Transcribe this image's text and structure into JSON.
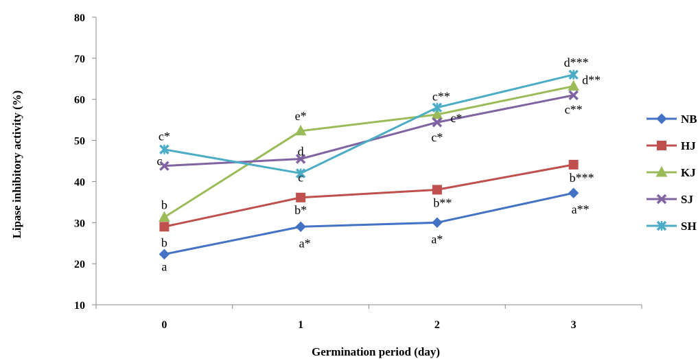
{
  "chart_data": {
    "type": "line",
    "title": "",
    "xlabel": "Germination period (day)",
    "ylabel": "Lipase inhibitory activity (%)",
    "categories": [
      "0",
      "1",
      "2",
      "3"
    ],
    "ylim": [
      10,
      80
    ],
    "yticks": [
      "10",
      "20",
      "30",
      "40",
      "50",
      "60",
      "70",
      "80"
    ],
    "grid": false,
    "legend_position": "right",
    "series": [
      {
        "name": "NB",
        "color": "#4472C4",
        "marker": "diamond",
        "values": [
          22.3,
          29.0,
          30.0,
          37.2
        ],
        "labels": [
          "a",
          "a*",
          "a*",
          "a**"
        ]
      },
      {
        "name": "HJ",
        "color": "#C0504D",
        "marker": "square",
        "values": [
          29.0,
          36.1,
          38.0,
          44.1
        ],
        "labels": [
          "b",
          "b*",
          "b**",
          "b***"
        ]
      },
      {
        "name": "KJ",
        "color": "#9BBB59",
        "marker": "triangle",
        "values": [
          31.3,
          52.3,
          56.3,
          63.2
        ],
        "labels": [
          "b",
          "e*",
          "c*",
          "d**"
        ]
      },
      {
        "name": "SJ",
        "color": "#8064A2",
        "marker": "x",
        "values": [
          43.8,
          45.5,
          54.4,
          61.0
        ],
        "labels": [
          "c",
          "d",
          "c*",
          "c**"
        ]
      },
      {
        "name": "SH",
        "color": "#4BACC6",
        "marker": "star",
        "values": [
          47.8,
          42.0,
          58.0,
          66.0
        ],
        "labels": [
          "c*",
          "c",
          "c**",
          "d***"
        ]
      }
    ]
  }
}
